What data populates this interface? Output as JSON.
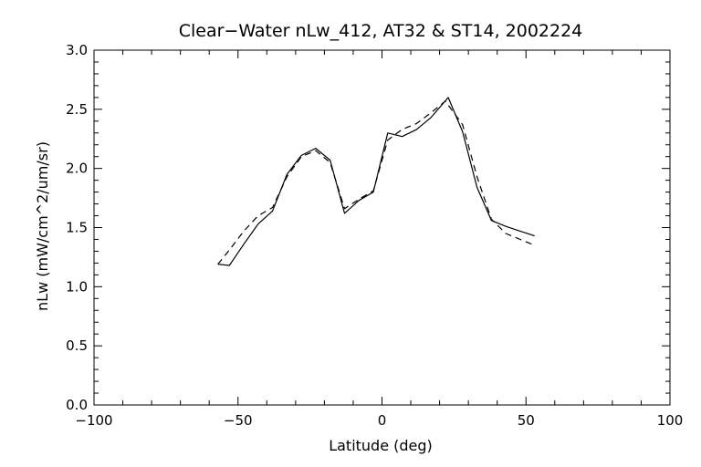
{
  "chart_data": {
    "type": "line",
    "title": "Clear−Water nLw_412, AT32 & ST14, 2002224",
    "xlabel": "Latitude (deg)",
    "ylabel": "nLw (mW/cm^2/um/sr)",
    "xlim": [
      -100,
      100
    ],
    "ylim": [
      0.0,
      3.0
    ],
    "x_ticks": [
      -100,
      -50,
      0,
      50,
      100
    ],
    "x_tick_labels": [
      "−100",
      "−50",
      "0",
      "50",
      "100"
    ],
    "y_ticks": [
      0.0,
      0.5,
      1.0,
      1.5,
      2.0,
      2.5,
      3.0
    ],
    "y_tick_labels": [
      "0.0",
      "0.5",
      "1.0",
      "1.5",
      "2.0",
      "2.5",
      "3.0"
    ],
    "x_minor_step": 10,
    "y_minor_step": 0.1,
    "grid": false,
    "legend": false,
    "series": [
      {
        "line_style": "solid",
        "color": "#000000",
        "x": [
          -57,
          -53,
          -48,
          -43,
          -38,
          -33,
          -28,
          -23,
          -18,
          -13,
          -8,
          -3,
          2,
          7,
          12,
          17,
          23,
          28,
          33,
          38,
          43,
          48,
          53
        ],
        "y": [
          1.19,
          1.18,
          1.36,
          1.53,
          1.64,
          1.95,
          2.11,
          2.17,
          2.07,
          1.62,
          1.73,
          1.8,
          2.3,
          2.27,
          2.33,
          2.43,
          2.6,
          2.31,
          1.84,
          1.56,
          1.51,
          1.47,
          1.43
        ]
      },
      {
        "line_style": "dashed",
        "color": "#000000",
        "x": [
          -57,
          -53,
          -48,
          -43,
          -38,
          -33,
          -28,
          -23,
          -18,
          -13,
          -8,
          -3,
          2,
          7,
          12,
          17,
          22,
          28,
          33,
          38,
          43,
          48,
          53
        ],
        "y": [
          1.19,
          1.31,
          1.47,
          1.6,
          1.67,
          1.93,
          2.1,
          2.15,
          2.05,
          1.66,
          1.74,
          1.81,
          2.24,
          2.33,
          2.38,
          2.47,
          2.57,
          2.37,
          1.93,
          1.57,
          1.45,
          1.4,
          1.35
        ]
      }
    ]
  }
}
